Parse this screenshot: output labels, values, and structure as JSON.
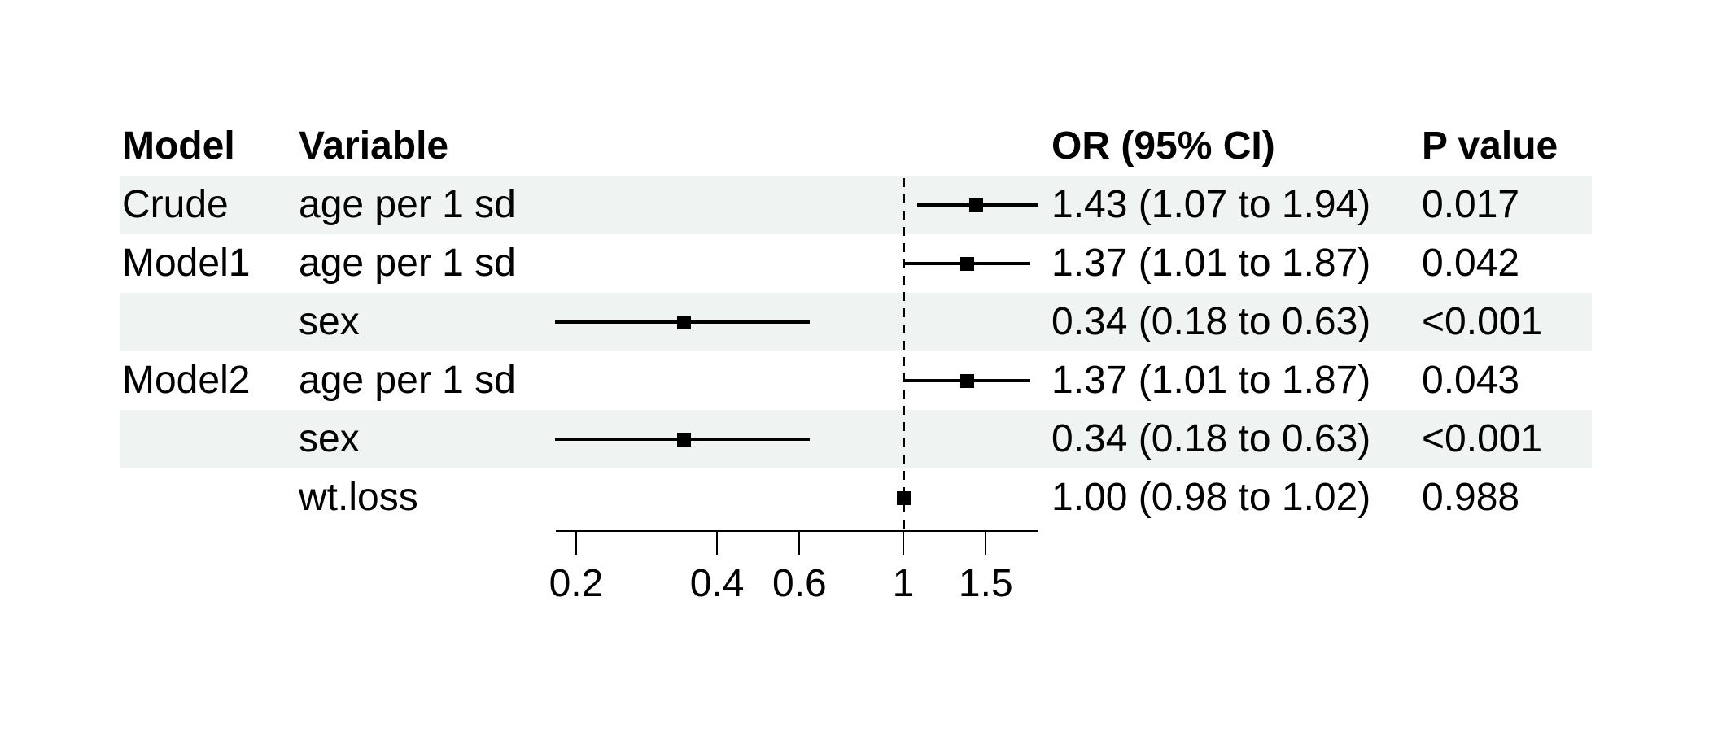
{
  "page": {
    "background_color": "#ffffff",
    "text_color": "#000000"
  },
  "table": {
    "headers": {
      "model": "Model",
      "variable": "Variable",
      "or": "OR (95% CI)",
      "p": "P value"
    },
    "zebra_color": "#eff3f2"
  },
  "chart_data": {
    "type": "forest",
    "title": "",
    "xlabel": "",
    "scale": "log10",
    "xlim": [
      0.18,
      1.95
    ],
    "reference_line": 1,
    "x_ticks": [
      0.2,
      0.4,
      0.6,
      1,
      1.5
    ],
    "x_tick_labels": [
      "0.2",
      "0.4",
      "0.6",
      "1",
      "1.5"
    ],
    "marker": "filled-square",
    "marker_color": "#000000",
    "ci_color": "#000000",
    "columns": [
      "Model",
      "Variable",
      "OR (95% CI)",
      "P value"
    ],
    "rows": [
      {
        "model": "Crude",
        "variable": "age per 1 sd",
        "est": 1.43,
        "lo": 1.07,
        "hi": 1.94,
        "or_text": "1.43 (1.07 to 1.94)",
        "p_text": "0.017",
        "shaded": true
      },
      {
        "model": "Model1",
        "variable": "age per 1 sd",
        "est": 1.37,
        "lo": 1.01,
        "hi": 1.87,
        "or_text": "1.37 (1.01 to 1.87)",
        "p_text": "0.042",
        "shaded": false
      },
      {
        "model": "",
        "variable": "sex",
        "est": 0.34,
        "lo": 0.18,
        "hi": 0.63,
        "or_text": "0.34 (0.18 to 0.63)",
        "p_text": "<0.001",
        "shaded": true
      },
      {
        "model": "Model2",
        "variable": "age per 1 sd",
        "est": 1.37,
        "lo": 1.01,
        "hi": 1.87,
        "or_text": "1.37 (1.01 to 1.87)",
        "p_text": "0.043",
        "shaded": false
      },
      {
        "model": "",
        "variable": "sex",
        "est": 0.34,
        "lo": 0.18,
        "hi": 0.63,
        "or_text": "0.34 (0.18 to 0.63)",
        "p_text": "<0.001",
        "shaded": true
      },
      {
        "model": "",
        "variable": "wt.loss",
        "est": 1.0,
        "lo": 0.98,
        "hi": 1.02,
        "or_text": "1.00 (0.98 to 1.02)",
        "p_text": "0.988",
        "shaded": false
      }
    ]
  }
}
